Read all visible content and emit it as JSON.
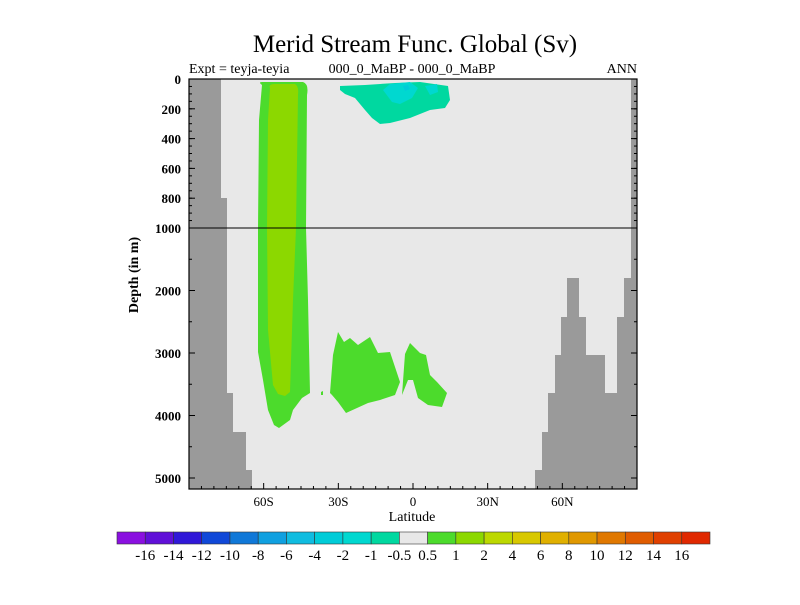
{
  "chart_data": {
    "type": "contour",
    "title": "Merid Stream Func. Global (Sv)",
    "subtitle_left": "Expt = teyja-teyia",
    "subtitle_center": "000_0_MaBP - 000_0_MaBP",
    "subtitle_right": "ANN",
    "xlabel": "Latitude",
    "ylabel": "Depth (in m)",
    "x_ticks": [
      {
        "value": -60,
        "label": "60S"
      },
      {
        "value": -30,
        "label": "30S"
      },
      {
        "value": 0,
        "label": "0"
      },
      {
        "value": 30,
        "label": "30N"
      },
      {
        "value": 60,
        "label": "60N"
      }
    ],
    "y_ticks_upper": [
      {
        "value": 0,
        "label": "0"
      },
      {
        "value": 200,
        "label": "200"
      },
      {
        "value": 400,
        "label": "400"
      },
      {
        "value": 600,
        "label": "600"
      },
      {
        "value": 800,
        "label": "800"
      },
      {
        "value": 1000,
        "label": "1000"
      }
    ],
    "y_ticks_lower": [
      {
        "value": 2000,
        "label": "2000"
      },
      {
        "value": 3000,
        "label": "3000"
      },
      {
        "value": 4000,
        "label": "4000"
      },
      {
        "value": 5000,
        "label": "5000"
      }
    ],
    "xlim": [
      -90,
      90
    ],
    "ylim": [
      5000,
      0
    ],
    "y_axis_break": 1000,
    "colorbar": {
      "labels": [
        "-16",
        "-14",
        "-12",
        "-10",
        "-8",
        "-6",
        "-4",
        "-2",
        "-1",
        "-0.5",
        "0.5",
        "1",
        "2",
        "4",
        "6",
        "8",
        "10",
        "12",
        "14",
        "16"
      ],
      "colors": [
        "#8a10e0",
        "#6010d8",
        "#3018d8",
        "#1048d8",
        "#1078d8",
        "#10a0e0",
        "#10bce0",
        "#00ccd8",
        "#00d8d0",
        "#00d8a0",
        "#e8e8e8",
        "#4cdb2c",
        "#8cd800",
        "#bcd800",
        "#d8c800",
        "#e0b000",
        "#e09800",
        "#e07800",
        "#e05c00",
        "#e04000",
        "#e02800"
      ]
    },
    "background_color": "#e8e8e8",
    "land_color": "#9a9a9a",
    "features": [
      {
        "name": "southern-positive-cell",
        "level_range": [
          0.5,
          2
        ],
        "lat_range": [
          -62,
          -42
        ],
        "depth_range": [
          50,
          4200
        ]
      },
      {
        "name": "tropical-negative-cell",
        "level_range": [
          -4,
          -0.5
        ],
        "lat_range": [
          -30,
          15
        ],
        "depth_range": [
          50,
          320
        ]
      },
      {
        "name": "deep-positive-cell",
        "level_range": [
          0.5,
          1
        ],
        "lat_range": [
          -33,
          15
        ],
        "depth_range": [
          2700,
          4000
        ]
      }
    ]
  }
}
